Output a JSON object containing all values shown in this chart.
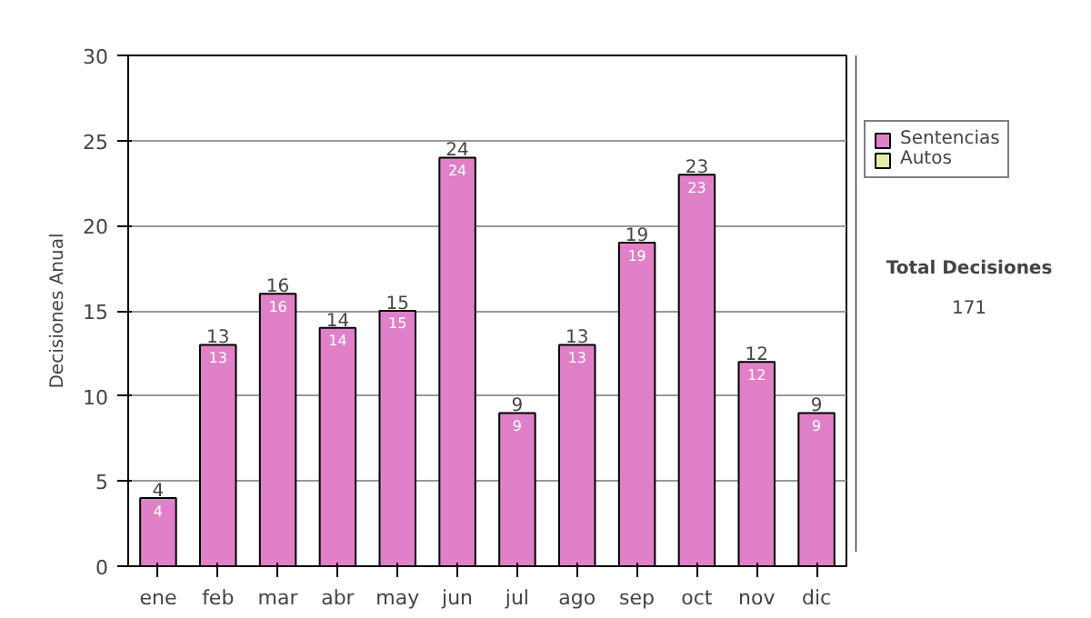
{
  "chart_data": {
    "type": "bar",
    "ylabel": "Decisiones Anual",
    "categories": [
      "ene",
      "feb",
      "mar",
      "abr",
      "may",
      "jun",
      "jul",
      "ago",
      "sep",
      "oct",
      "nov",
      "dic"
    ],
    "series": [
      {
        "name": "Sentencias",
        "color": "#e080c8",
        "values": [
          4,
          13,
          16,
          14,
          15,
          24,
          9,
          13,
          19,
          23,
          12,
          9
        ]
      },
      {
        "name": "Autos",
        "color": "#e0f0a8",
        "values": [
          null,
          null,
          null,
          null,
          null,
          null,
          null,
          null,
          null,
          null,
          null,
          null
        ]
      }
    ],
    "ylim": [
      0,
      30
    ],
    "yticks": [
      0,
      5,
      10,
      15,
      20,
      25,
      30
    ],
    "grid": "y",
    "legend": "right",
    "data_labels": true,
    "totals": [
      "4",
      "13",
      "16",
      "14",
      "15",
      "24",
      "9",
      "13",
      "19",
      "23",
      "12",
      "9"
    ],
    "annotations": [
      "Total Decisiones",
      "171"
    ]
  }
}
